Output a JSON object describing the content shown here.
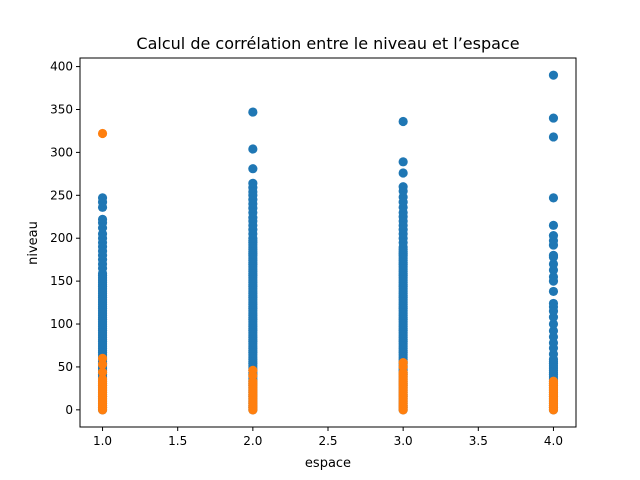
{
  "chart_data": {
    "type": "scatter",
    "title": "Calcul de corrélation entre le niveau et l’espace",
    "xlabel": "espace",
    "ylabel": "niveau",
    "xlim": [
      0.85,
      4.15
    ],
    "ylim": [
      -20,
      410
    ],
    "x_ticks": [
      1.0,
      1.5,
      2.0,
      2.5,
      3.0,
      3.5,
      4.0
    ],
    "x_tick_labels": [
      "1.0",
      "1.5",
      "2.0",
      "2.5",
      "3.0",
      "3.5",
      "4.0"
    ],
    "y_ticks": [
      0,
      50,
      100,
      150,
      200,
      250,
      300,
      350,
      400
    ],
    "y_tick_labels": [
      "0",
      "50",
      "100",
      "150",
      "200",
      "250",
      "300",
      "350",
      "400"
    ],
    "grid": false,
    "legend": "none",
    "series": [
      {
        "color": "#1f77b4",
        "points": [
          {
            "x": 1,
            "y_dense_range": [
              0,
              160
            ]
          },
          {
            "x": 1,
            "y": 165
          },
          {
            "x": 1,
            "y": 170
          },
          {
            "x": 1,
            "y": 175
          },
          {
            "x": 1,
            "y": 180
          },
          {
            "x": 1,
            "y": 185
          },
          {
            "x": 1,
            "y": 190
          },
          {
            "x": 1,
            "y": 195
          },
          {
            "x": 1,
            "y": 200
          },
          {
            "x": 1,
            "y": 205
          },
          {
            "x": 1,
            "y": 212
          },
          {
            "x": 1,
            "y": 218
          },
          {
            "x": 1,
            "y": 222
          },
          {
            "x": 1,
            "y": 236
          },
          {
            "x": 1,
            "y": 242
          },
          {
            "x": 1,
            "y": 247
          },
          {
            "x": 2,
            "y_dense_range": [
              0,
              200
            ]
          },
          {
            "x": 2,
            "y": 205
          },
          {
            "x": 2,
            "y": 210
          },
          {
            "x": 2,
            "y": 215
          },
          {
            "x": 2,
            "y": 220
          },
          {
            "x": 2,
            "y": 224
          },
          {
            "x": 2,
            "y": 230
          },
          {
            "x": 2,
            "y": 235
          },
          {
            "x": 2,
            "y": 240
          },
          {
            "x": 2,
            "y": 245
          },
          {
            "x": 2,
            "y": 250
          },
          {
            "x": 2,
            "y": 254
          },
          {
            "x": 2,
            "y": 259
          },
          {
            "x": 2,
            "y": 264
          },
          {
            "x": 2,
            "y": 281
          },
          {
            "x": 2,
            "y": 304
          },
          {
            "x": 2,
            "y": 347
          },
          {
            "x": 3,
            "y_dense_range": [
              0,
              190
            ]
          },
          {
            "x": 3,
            "y": 195
          },
          {
            "x": 3,
            "y": 200
          },
          {
            "x": 3,
            "y": 205
          },
          {
            "x": 3,
            "y": 210
          },
          {
            "x": 3,
            "y": 215
          },
          {
            "x": 3,
            "y": 220
          },
          {
            "x": 3,
            "y": 225
          },
          {
            "x": 3,
            "y": 230
          },
          {
            "x": 3,
            "y": 236
          },
          {
            "x": 3,
            "y": 242
          },
          {
            "x": 3,
            "y": 248
          },
          {
            "x": 3,
            "y": 255
          },
          {
            "x": 3,
            "y": 260
          },
          {
            "x": 3,
            "y": 276
          },
          {
            "x": 3,
            "y": 289
          },
          {
            "x": 3,
            "y": 336
          },
          {
            "x": 4,
            "y_dense_range": [
              0,
              60
            ]
          },
          {
            "x": 4,
            "y": 65
          },
          {
            "x": 4,
            "y": 72
          },
          {
            "x": 4,
            "y": 78
          },
          {
            "x": 4,
            "y": 85
          },
          {
            "x": 4,
            "y": 92
          },
          {
            "x": 4,
            "y": 100
          },
          {
            "x": 4,
            "y": 108
          },
          {
            "x": 4,
            "y": 115
          },
          {
            "x": 4,
            "y": 120
          },
          {
            "x": 4,
            "y": 124
          },
          {
            "x": 4,
            "y": 138
          },
          {
            "x": 4,
            "y": 150
          },
          {
            "x": 4,
            "y": 155
          },
          {
            "x": 4,
            "y": 163
          },
          {
            "x": 4,
            "y": 170
          },
          {
            "x": 4,
            "y": 178
          },
          {
            "x": 4,
            "y": 180
          },
          {
            "x": 4,
            "y": 192
          },
          {
            "x": 4,
            "y": 197
          },
          {
            "x": 4,
            "y": 203
          },
          {
            "x": 4,
            "y": 215
          },
          {
            "x": 4,
            "y": 247
          },
          {
            "x": 4,
            "y": 318
          },
          {
            "x": 4,
            "y": 340
          },
          {
            "x": 4,
            "y": 390
          }
        ]
      },
      {
        "color": "#ff7f0e",
        "points": [
          {
            "x": 1,
            "y_dense_range": [
              0,
              38
            ]
          },
          {
            "x": 1,
            "y": 44
          },
          {
            "x": 1,
            "y": 53
          },
          {
            "x": 1,
            "y": 60
          },
          {
            "x": 1,
            "y": 322
          },
          {
            "x": 2,
            "y_dense_range": [
              0,
              35
            ]
          },
          {
            "x": 2,
            "y": 40
          },
          {
            "x": 2,
            "y": 46
          },
          {
            "x": 3,
            "y_dense_range": [
              0,
              45
            ]
          },
          {
            "x": 3,
            "y": 50
          },
          {
            "x": 3,
            "y": 55
          },
          {
            "x": 4,
            "y_dense_range": [
              0,
              35
            ]
          }
        ]
      }
    ]
  }
}
